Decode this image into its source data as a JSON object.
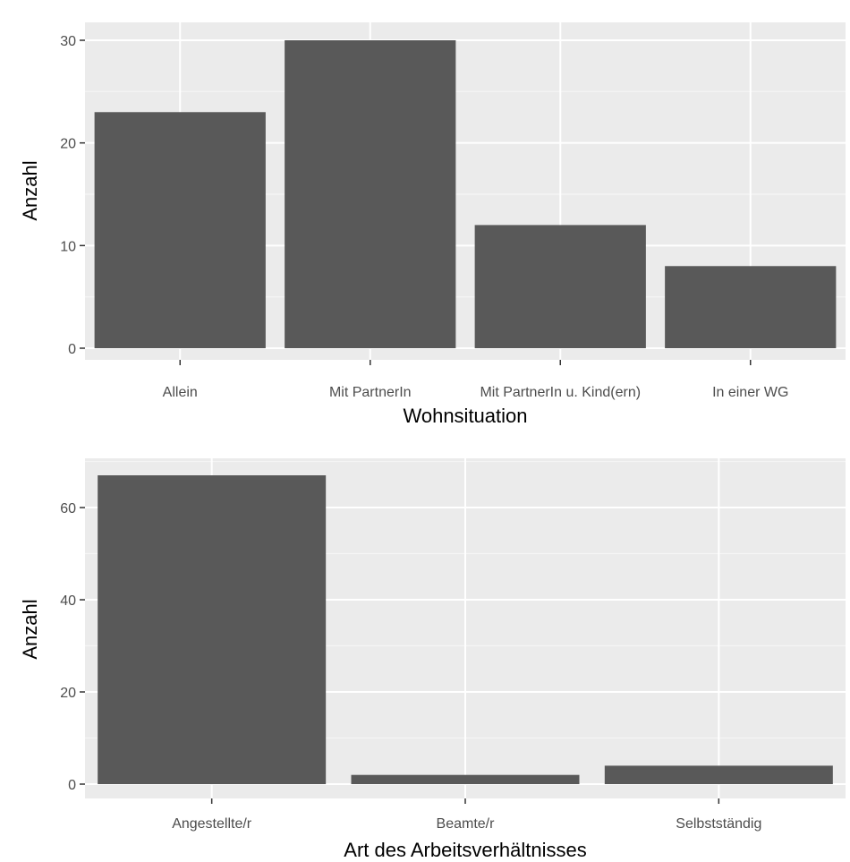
{
  "colors": {
    "panel_background": "#ebebeb",
    "major_grid": "#ffffff",
    "minor_grid": "#f5f5f5",
    "bar_fill": "#595959",
    "tick_text": "#4d4d4d",
    "axis_title_text": "#000000"
  },
  "chart_data": [
    {
      "type": "bar",
      "categories": [
        "Allein",
        "Mit PartnerIn",
        "Mit PartnerIn u. Kind(ern)",
        "In einer WG"
      ],
      "values": [
        23,
        30,
        12,
        8
      ],
      "title": "",
      "xlabel": "Wohnsituation",
      "ylabel": "Anzahl",
      "ylim": [
        0,
        30
      ],
      "yticks": [
        0,
        10,
        20,
        30
      ],
      "grid": true,
      "legend": "none"
    },
    {
      "type": "bar",
      "categories": [
        "Angestellte/r",
        "Beamte/r",
        "Selbstständig"
      ],
      "values": [
        67,
        2,
        4
      ],
      "title": "",
      "xlabel": "Art des Arbeitsverhältnisses",
      "ylabel": "Anzahl",
      "ylim": [
        0,
        67
      ],
      "yticks": [
        0,
        20,
        40,
        60
      ],
      "grid": true,
      "legend": "none"
    }
  ]
}
